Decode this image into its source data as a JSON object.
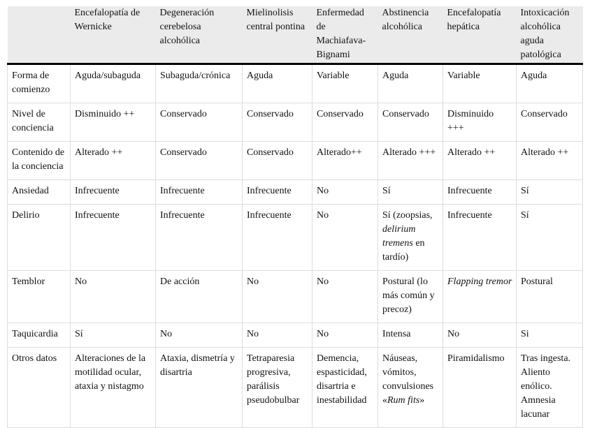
{
  "table": {
    "header": [
      null,
      "Encefalopatía de Wernicke",
      "Degeneración cerebelosa alcohólica",
      "Mielinolisis central pontina",
      "Enfermedad de Machiafava-Bignami",
      "Abstinencia alcohólica",
      "Encefalopatía hepática",
      "Intoxicación alcohólica aguda patológica"
    ],
    "rows": [
      [
        "Forma de comienzo",
        "Aguda/subaguda",
        "Subaguda/crónica",
        "Aguda",
        "Variable",
        "Aguda",
        "Variable",
        "Aguda"
      ],
      [
        "Nivel de conciencia",
        "Disminuido ++",
        "Conservado",
        "Conservado",
        "Conservado",
        "Conservado",
        "Disminuido +++",
        "Conservado"
      ],
      [
        "Contenido de la conciencia",
        "Alterado ++",
        "Conservado",
        "Conservado",
        "Alterado++",
        "Alterado +++",
        "Alterado ++",
        "Alterado ++"
      ],
      [
        "Ansiedad",
        "Infrecuente",
        "Infrecuente",
        "Infrecuente",
        "No",
        "Sí",
        "Infrecuente",
        "Sí"
      ],
      [
        "Delirio",
        "Infrecuente",
        "Infrecuente",
        "Infrecuente",
        "No",
        [
          {
            "text": "Sí (zoopsias, "
          },
          {
            "text": "delirium tremens",
            "italic": true
          },
          {
            "text": " en tardío)"
          }
        ],
        "Infrecuente",
        "Sí"
      ],
      [
        "Temblor",
        "No",
        "De acción",
        "No",
        "No",
        "Postural (lo más común y precoz)",
        [
          {
            "text": "Flapping tremor",
            "italic": true
          }
        ],
        "Postural"
      ],
      [
        "Taquicardia",
        "Sí",
        "No",
        "No",
        "No",
        "Intensa",
        "No",
        "Si"
      ],
      [
        "Otros datos",
        "Alteraciones de la motilidad ocular, ataxia y nistagmo",
        "Ataxia, dismetría y disartria",
        "Tetraparesia progresiva, parálisis pseudobulbar",
        "Demencia, espasticidad, disartria e inestabilidad",
        [
          {
            "text": "Náuseas, vómitos, convulsiones «"
          },
          {
            "text": "Rum fits",
            "italic": true
          },
          {
            "text": "»"
          }
        ],
        "Piramidalismo",
        "Tras ingesta. Aliento enólico. Amnesia lacunar"
      ]
    ]
  }
}
